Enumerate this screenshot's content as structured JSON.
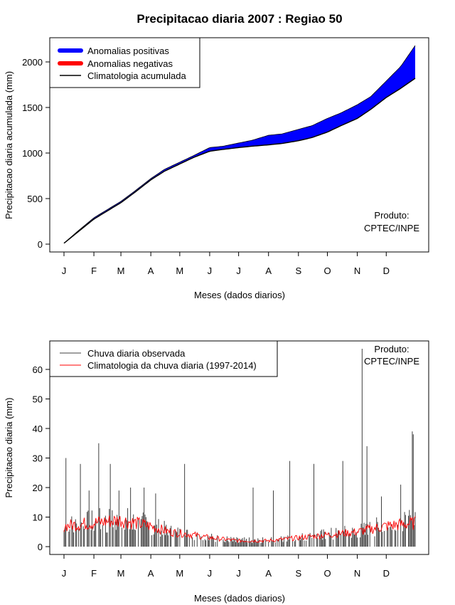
{
  "title": "Precipitacao diaria 2007 : Regiao 50",
  "months": [
    "J",
    "F",
    "M",
    "A",
    "M",
    "J",
    "J",
    "A",
    "S",
    "O",
    "N",
    "D"
  ],
  "xlabel": "Meses (dados diarios)",
  "credit": {
    "line1": "Produto:",
    "line2": "CPTEC/INPE"
  },
  "chart_data": [
    {
      "type": "area",
      "name": "accumulated",
      "ylabel": "Precipitacao diaria acumulada (mm)",
      "ylim": [
        0,
        2200
      ],
      "yticks": [
        0,
        500,
        1000,
        1500,
        2000
      ],
      "legend": [
        {
          "label": "Anomalias positivas",
          "color": "#0000ff"
        },
        {
          "label": "Anomalias negativas",
          "color": "#ff0000"
        },
        {
          "label": "Climatologia acumulada",
          "color": "#000000"
        }
      ],
      "days": [
        1,
        15,
        32,
        46,
        60,
        74,
        91,
        105,
        121,
        135,
        152,
        166,
        182,
        196,
        213,
        227,
        244,
        258,
        274,
        288,
        305,
        319,
        335,
        350,
        365
      ],
      "observed": [
        10,
        140,
        290,
        380,
        470,
        580,
        720,
        820,
        900,
        970,
        1060,
        1075,
        1110,
        1140,
        1195,
        1210,
        1260,
        1300,
        1380,
        1440,
        1530,
        1620,
        1790,
        1950,
        2180
      ],
      "climatology": [
        10,
        130,
        275,
        365,
        455,
        565,
        705,
        800,
        880,
        950,
        1020,
        1040,
        1060,
        1075,
        1090,
        1105,
        1135,
        1170,
        1230,
        1300,
        1380,
        1480,
        1610,
        1710,
        1820
      ]
    },
    {
      "type": "bar",
      "name": "daily",
      "ylabel": "Precipitacao diaria (mm)",
      "ylim": [
        0,
        68
      ],
      "yticks": [
        0,
        10,
        20,
        30,
        40,
        50,
        60
      ],
      "legend": [
        {
          "label": "Chuva diaria observada",
          "color": "#404040"
        },
        {
          "label": "Climatologia da chuva diaria (1997-2014)",
          "color": "#ff0000"
        }
      ],
      "peaks": [
        {
          "day": 3,
          "value": 30
        },
        {
          "day": 18,
          "value": 28
        },
        {
          "day": 27,
          "value": 19
        },
        {
          "day": 37,
          "value": 35
        },
        {
          "day": 49,
          "value": 28
        },
        {
          "day": 58,
          "value": 19
        },
        {
          "day": 70,
          "value": 20
        },
        {
          "day": 84,
          "value": 20
        },
        {
          "day": 96,
          "value": 18
        },
        {
          "day": 126,
          "value": 28
        },
        {
          "day": 197,
          "value": 20
        },
        {
          "day": 218,
          "value": 19
        },
        {
          "day": 235,
          "value": 29
        },
        {
          "day": 260,
          "value": 28
        },
        {
          "day": 290,
          "value": 29
        },
        {
          "day": 310,
          "value": 67
        },
        {
          "day": 315,
          "value": 34
        },
        {
          "day": 330,
          "value": 17
        },
        {
          "day": 350,
          "value": 21
        },
        {
          "day": 362,
          "value": 39
        },
        {
          "day": 363,
          "value": 38
        }
      ],
      "climatology_level": [
        {
          "day": 1,
          "value": 7
        },
        {
          "day": 30,
          "value": 8
        },
        {
          "day": 60,
          "value": 9
        },
        {
          "day": 90,
          "value": 7
        },
        {
          "day": 110,
          "value": 5
        },
        {
          "day": 135,
          "value": 4
        },
        {
          "day": 152,
          "value": 3
        },
        {
          "day": 182,
          "value": 2
        },
        {
          "day": 213,
          "value": 2
        },
        {
          "day": 244,
          "value": 3
        },
        {
          "day": 274,
          "value": 4
        },
        {
          "day": 305,
          "value": 5
        },
        {
          "day": 335,
          "value": 7
        },
        {
          "day": 365,
          "value": 8
        }
      ]
    }
  ]
}
